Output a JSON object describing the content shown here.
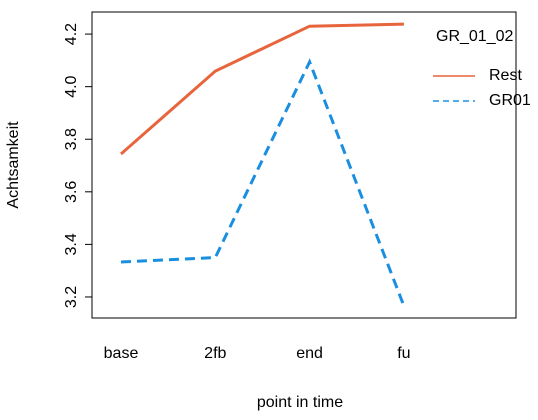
{
  "chart_data": {
    "type": "line",
    "xlabel": "point in time",
    "ylabel": "Achtsamkeit",
    "categories": [
      "base",
      "2fb",
      "end",
      "fu"
    ],
    "series": [
      {
        "name": "Rest",
        "color": "#e8643c",
        "dash": false,
        "values": [
          3.744,
          4.059,
          4.23,
          4.238
        ]
      },
      {
        "name": "GR01",
        "color": "#1a8fe0",
        "dash": true,
        "values": [
          3.333,
          3.35,
          4.094,
          3.166
        ]
      }
    ],
    "legend_title": "GR_01_02",
    "ylim": [
      3.12,
      4.284
    ],
    "yticks": [
      3.2,
      3.4,
      3.6,
      3.8,
      4.0,
      4.2
    ]
  }
}
